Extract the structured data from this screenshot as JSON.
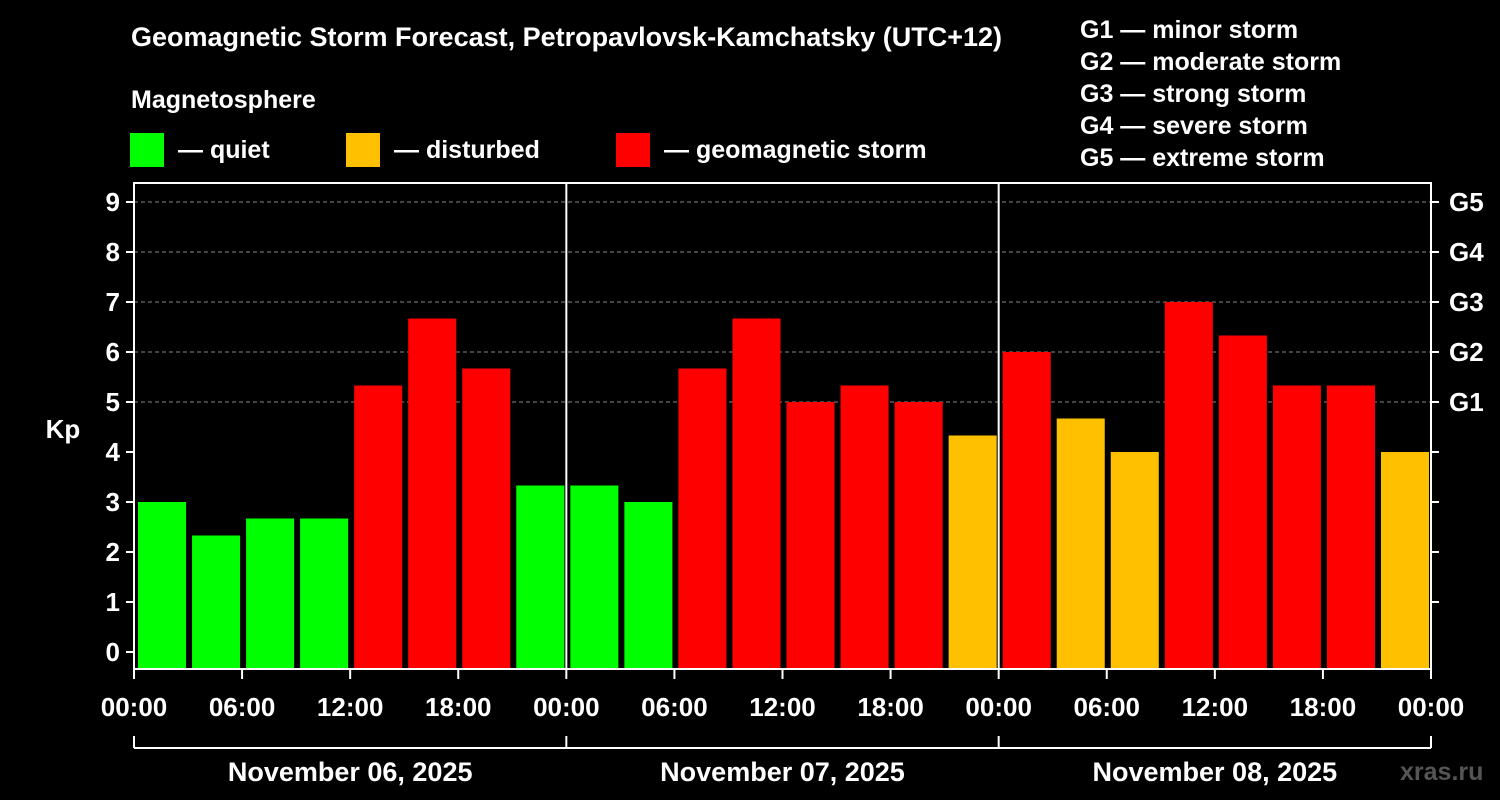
{
  "header": {
    "title": "Geomagnetic Storm Forecast, Petropavlovsk-Kamchatsky (UTC+12)",
    "subtitle": "Magnetosphere"
  },
  "legend": [
    {
      "label": "— quiet",
      "color": "#00ff00"
    },
    {
      "label": "— disturbed",
      "color": "#ffc000"
    },
    {
      "label": "— geomagnetic storm",
      "color": "#ff0000"
    }
  ],
  "storm_scale": [
    "G1 — minor storm",
    "G2 — moderate storm",
    "G3 — strong storm",
    "G4 — severe storm",
    "G5 — extreme storm"
  ],
  "watermark": "xras.ru",
  "colors": {
    "quiet": "#00ff00",
    "disturbed": "#ffc000",
    "storm": "#ff0000",
    "background": "#000000"
  },
  "chart_data": {
    "type": "bar",
    "ylabel": "Kp",
    "ylim": [
      0,
      9
    ],
    "yticks": [
      "0",
      "1",
      "2",
      "3",
      "4",
      "5",
      "6",
      "7",
      "8",
      "9"
    ],
    "right_axis": [
      {
        "label": "G1",
        "kp": 5
      },
      {
        "label": "G2",
        "kp": 6
      },
      {
        "label": "G3",
        "kp": 7
      },
      {
        "label": "G4",
        "kp": 8
      },
      {
        "label": "G5",
        "kp": 9
      }
    ],
    "grid": "dashed horizontal lines at Kp 5–9",
    "time_ticks": [
      "00:00",
      "06:00",
      "12:00",
      "18:00",
      "00:00",
      "06:00",
      "12:00",
      "18:00",
      "00:00",
      "06:00",
      "12:00",
      "18:00",
      "00:00"
    ],
    "days": [
      "November 06, 2025",
      "November 07, 2025",
      "November 08, 2025"
    ],
    "bar_interval_hours": 3,
    "values": [
      3.0,
      2.33,
      2.67,
      2.67,
      5.33,
      6.67,
      5.67,
      3.33,
      3.33,
      3.0,
      5.67,
      6.67,
      5.0,
      5.33,
      5.0,
      4.33,
      6.0,
      4.67,
      4.0,
      7.0,
      6.33,
      5.33,
      5.33,
      4.0
    ],
    "levels": [
      "quiet",
      "quiet",
      "quiet",
      "quiet",
      "storm",
      "storm",
      "storm",
      "quiet",
      "quiet",
      "quiet",
      "storm",
      "storm",
      "storm",
      "storm",
      "storm",
      "disturbed",
      "storm",
      "disturbed",
      "disturbed",
      "storm",
      "storm",
      "storm",
      "storm",
      "disturbed"
    ]
  }
}
